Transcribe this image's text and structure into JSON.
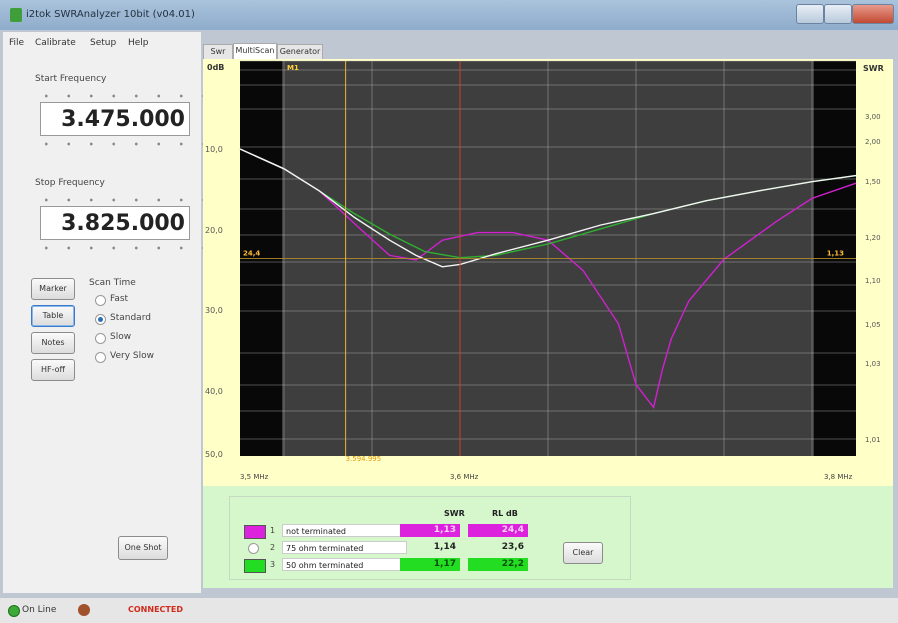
{
  "window": {
    "title": "i2tok SWRAnalyzer 10bit (v04.01)"
  },
  "menu": [
    "File",
    "Calibrate",
    "Setup",
    "Help"
  ],
  "left_panel": {
    "start_label": "Start Frequency",
    "start_value": "3.475.000",
    "stop_label": "Stop Frequency",
    "stop_value": "3.825.000",
    "buttons": {
      "marker": "Marker",
      "table": "Table",
      "notes": "Notes",
      "hf_off": "HF-off",
      "one_shot": "One Shot"
    },
    "scan_time_label": "Scan Time",
    "scan_options": [
      "Fast",
      "Standard",
      "Slow",
      "Very Slow"
    ],
    "scan_selected": "Standard"
  },
  "tabs": [
    "Swr",
    "MultiScan",
    "Generator"
  ],
  "active_tab": "MultiScan",
  "chart": {
    "left_axis_title": "0dB",
    "right_axis_title": "SWR",
    "marker_label": "M1",
    "left_value_label": "24,4",
    "right_value_label": "1,13",
    "cursor_label": "3.594.995",
    "x_labels": [
      "3,5 MHz",
      "3,6 MHz",
      "3,8 MHz"
    ]
  },
  "chart_data": {
    "type": "line",
    "xlabel": "",
    "ylabel": "",
    "xlim": [
      3.475,
      3.825
    ],
    "x_ticks": [
      3.5,
      3.6,
      3.8
    ],
    "left_ticks": [
      "10,0",
      "20,0",
      "30,0",
      "40,0",
      "50,0"
    ],
    "left_lim": [
      0,
      50
    ],
    "right_ticks": [
      "3,00",
      "2,00",
      "1,50",
      "1,20",
      "1,10",
      "1,05",
      "1,03",
      "1,01"
    ],
    "cursor_x": 3.594995,
    "series": [
      {
        "color": "#d020d0",
        "x": [
          3.475,
          3.5,
          3.52,
          3.54,
          3.56,
          3.575,
          3.59,
          3.61,
          3.63,
          3.65,
          3.67,
          3.69,
          3.7,
          3.71,
          3.715,
          3.72,
          3.73,
          3.75,
          3.78,
          3.8,
          3.825
        ],
        "y": [
          10.0,
          12.6,
          15.5,
          19.8,
          24.0,
          24.6,
          22.0,
          21.0,
          21.0,
          22.0,
          26.0,
          33.0,
          41.0,
          44.0,
          39.0,
          35.0,
          30.0,
          24.5,
          19.5,
          16.5,
          14.5
        ]
      },
      {
        "color": "#30b030",
        "x": [
          3.475,
          3.5,
          3.52,
          3.54,
          3.56,
          3.58,
          3.6,
          3.62,
          3.65,
          3.68,
          3.71,
          3.74,
          3.77,
          3.8,
          3.825
        ],
        "y": [
          10.0,
          12.6,
          15.5,
          18.5,
          21.2,
          23.5,
          24.3,
          24.0,
          22.5,
          20.5,
          18.5,
          16.8,
          15.5,
          14.3,
          13.5
        ]
      },
      {
        "color": "#f4f4f4",
        "x": [
          3.475,
          3.5,
          3.52,
          3.54,
          3.56,
          3.575,
          3.59,
          3.6,
          3.62,
          3.65,
          3.68,
          3.71,
          3.74,
          3.77,
          3.8,
          3.825
        ],
        "y": [
          10.0,
          12.6,
          15.5,
          19.0,
          22.0,
          24.0,
          25.5,
          25.2,
          23.8,
          22.0,
          20.0,
          18.5,
          16.8,
          15.5,
          14.3,
          13.5
        ]
      }
    ]
  },
  "table": {
    "swr_header": "SWR",
    "rl_header": "RL dB",
    "rows": [
      {
        "num": "1",
        "name": "not terminated",
        "swr": "1,13",
        "rl": "24,4",
        "color": "#dd22dd"
      },
      {
        "num": "2",
        "name": "75 ohm terminated",
        "swr": "1,14",
        "rl": "23,6",
        "color": "#ffffff"
      },
      {
        "num": "3",
        "name": "50 ohm terminated",
        "swr": "1,17",
        "rl": "22,2",
        "color": "#22dd22"
      }
    ],
    "clear_label": "Clear"
  },
  "status": {
    "online": "On Line",
    "connected": "CONNECTED"
  }
}
